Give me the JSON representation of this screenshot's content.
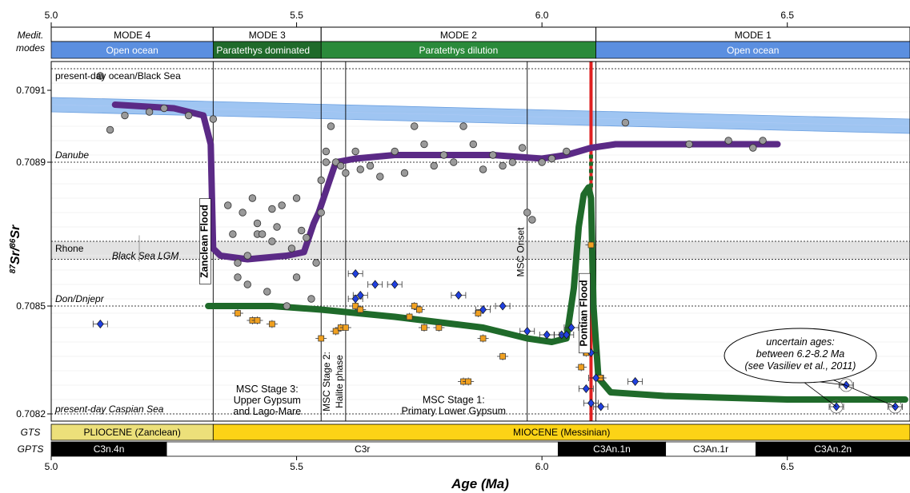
{
  "chart_data": {
    "type": "scatter",
    "xlabel": "Age (Ma)",
    "ylabel": "87Sr/86Sr",
    "ylabel_parts": [
      "87",
      "Sr/",
      "86",
      "Sr"
    ],
    "xlim": [
      5.0,
      6.75
    ],
    "ylim": [
      0.70818,
      0.70918
    ],
    "x_ticks": [
      5.0,
      5.5,
      6.0,
      6.5
    ],
    "x_tick_labels": [
      "5.0",
      "5.5",
      "6.0",
      "6.5"
    ],
    "y_ticks": [
      0.7082,
      0.7085,
      0.7089,
      0.7091
    ],
    "y_tick_labels": [
      "0.7082",
      "0.7085",
      "0.7089",
      "0.7091"
    ],
    "row_labels": {
      "modes": [
        "Medit.",
        "modes"
      ],
      "gts": "GTS",
      "gpts": "GPTS"
    },
    "mode_bands": [
      {
        "label": "MODE 4",
        "from": 5.0,
        "to": 5.33
      },
      {
        "label": "MODE 3",
        "from": 5.33,
        "to": 5.55
      },
      {
        "label": "MODE 2",
        "from": 5.55,
        "to": 6.11
      },
      {
        "label": "MODE 1",
        "from": 6.11,
        "to": 6.75
      }
    ],
    "connection_bands": [
      {
        "label": "Open ocean",
        "from": 5.0,
        "to": 5.33,
        "color": "#5b8fe0"
      },
      {
        "label": "Paratethys dominated",
        "from": 5.33,
        "to": 5.55,
        "color": "#1f6a2a"
      },
      {
        "label": "Paratethys dilution",
        "from": 5.55,
        "to": 6.11,
        "color": "#2a8a3a"
      },
      {
        "label": "Open ocean",
        "from": 6.11,
        "to": 6.75,
        "color": "#5b8fe0"
      }
    ],
    "gts_bands": [
      {
        "label": "PLIOCENE (Zanclean)",
        "from": 5.0,
        "to": 5.33,
        "color": "#ece07a"
      },
      {
        "label": "MIOCENE (Messinian)",
        "from": 5.33,
        "to": 6.75,
        "color": "#fcd316"
      }
    ],
    "gpts_bands": [
      {
        "label": "C3n.4n",
        "from": 5.0,
        "to": 5.235,
        "color": "#000000"
      },
      {
        "label": "C3r",
        "from": 5.235,
        "to": 6.033,
        "color": "#ffffff"
      },
      {
        "label": "C3An.1n",
        "from": 6.033,
        "to": 6.252,
        "color": "#000000"
      },
      {
        "label": "C3An.1r",
        "from": 6.252,
        "to": 6.436,
        "color": "#ffffff"
      },
      {
        "label": "C3An.2n",
        "from": 6.436,
        "to": 6.75,
        "color": "#000000"
      }
    ],
    "reference_lines": [
      {
        "label": "present-day ocean/Black Sea",
        "y": 70916,
        "style": "dashed"
      },
      {
        "label": "Danube",
        "y": 70890,
        "style": "dashed"
      },
      {
        "label": "Don/Dnjepr",
        "y": 70850,
        "style": "dashed"
      },
      {
        "label": "present-day Caspian Sea",
        "y": 70820,
        "style": "dashed"
      }
    ],
    "reference_bands": [
      {
        "label": "Rhone",
        "from": 70863,
        "to": 70868,
        "color": "#e2e2e2"
      },
      {
        "label": "Black Sea LGM",
        "from": 70863,
        "to": 70868,
        "color": "#e2e2e2"
      }
    ],
    "seawater_band": {
      "x": [
        5.0,
        6.75
      ],
      "upper": [
        70908,
        70902
      ],
      "lower": [
        70904,
        70898
      ],
      "color": "#7fb2ee"
    },
    "vertical_lines": [
      {
        "x": 5.33,
        "label": "Zanclean Flood"
      },
      {
        "x": 5.55,
        "label": "MSC Stage 2:"
      },
      {
        "x": 5.6,
        "label": "Halite phase"
      },
      {
        "x": 5.97,
        "label": "MSC Onset"
      },
      {
        "x": 6.11,
        "label": ""
      }
    ],
    "pontian_line": {
      "x": 6.1,
      "label": "Pontian Flood",
      "color": "#e02020"
    },
    "stage_labels": [
      {
        "lines": [
          "MSC Stage 3:",
          "Upper Gypsum",
          "and Lago-Mare"
        ],
        "x": 5.44,
        "y": 70826
      },
      {
        "lines": [
          "MSC Stage 1:",
          "Primary Lower Gypsum"
        ],
        "x": 5.82,
        "y": 70823
      }
    ],
    "callout": {
      "lines": [
        "uncertain ages:",
        "between 6.2-8.2 Ma",
        "(see Vasiliev et al., 2011)"
      ],
      "targets": [
        [
          6.6,
          70822
        ],
        [
          6.72,
          70822
        ],
        [
          6.62,
          70828
        ]
      ]
    },
    "series": [
      {
        "name": "",
        "kind": "line",
        "color": "#5b2a86",
        "x": [
          5.13,
          5.25,
          5.31,
          5.325,
          5.33,
          5.345,
          5.4,
          5.48,
          5.515,
          5.535,
          5.545,
          5.58,
          5.62,
          5.7,
          5.8,
          5.9,
          6.0,
          6.05,
          6.1,
          6.15,
          6.3,
          6.48
        ],
        "y": [
          70906,
          70905,
          70903,
          70895,
          70866,
          70864,
          70863,
          70864,
          70865,
          70873,
          70876,
          70890,
          70891,
          70892,
          70892,
          70892,
          70891,
          70892,
          70894,
          70895,
          70895,
          70895
        ]
      },
      {
        "name": "",
        "kind": "line",
        "color": "#1f6a2a",
        "x": [
          5.32,
          5.45,
          5.55,
          5.7,
          5.88,
          5.97,
          6.02,
          6.05,
          6.065,
          6.075,
          6.085,
          6.095,
          6.1,
          6.105,
          6.115,
          6.14,
          6.25,
          6.5,
          6.74
        ],
        "y": [
          70850,
          70850,
          70849,
          70847,
          70844,
          70841,
          70840,
          70841,
          70855,
          70872,
          70881,
          70883,
          70880,
          70850,
          70830,
          70826,
          70825,
          70824,
          70824
        ]
      },
      {
        "name": "",
        "kind": "scatter-circle",
        "color": "#9a9a9a",
        "x": [
          5.1,
          5.12,
          5.15,
          5.2,
          5.23,
          5.28,
          5.33,
          5.36,
          5.37,
          5.38,
          5.38,
          5.39,
          5.4,
          5.4,
          5.41,
          5.42,
          5.42,
          5.43,
          5.44,
          5.45,
          5.45,
          5.46,
          5.47,
          5.48,
          5.49,
          5.5,
          5.5,
          5.51,
          5.52,
          5.53,
          5.54,
          5.55,
          5.55,
          5.56,
          5.56,
          5.57,
          5.58,
          5.59,
          5.6,
          5.62,
          5.63,
          5.65,
          5.67,
          5.7,
          5.72,
          5.74,
          5.76,
          5.78,
          5.8,
          5.82,
          5.84,
          5.86,
          5.88,
          5.9,
          5.92,
          5.94,
          5.96,
          5.97,
          5.98,
          6.0,
          6.02,
          6.05,
          6.17,
          6.3,
          6.38,
          6.43,
          6.45
        ],
        "y": [
          70914,
          70899,
          70903,
          70904,
          70905,
          70903,
          70902,
          70878,
          70870,
          70862,
          70858,
          70876,
          70864,
          70856,
          70880,
          70873,
          70870,
          70870,
          70854,
          70877,
          70868,
          70872,
          70878,
          70850,
          70866,
          70858,
          70880,
          70871,
          70869,
          70852,
          70862,
          70876,
          70885,
          70893,
          70890,
          70900,
          70890,
          70889,
          70887,
          70893,
          70888,
          70889,
          70886,
          70893,
          70887,
          70900,
          70895,
          70889,
          70892,
          70890,
          70900,
          70895,
          70888,
          70892,
          70889,
          70890,
          70894,
          70876,
          70874,
          70890,
          70891,
          70893,
          70901,
          70895,
          70896,
          70894,
          70896
        ]
      },
      {
        "name": "",
        "kind": "scatter-square",
        "color": "#f0a020",
        "x": [
          5.38,
          5.41,
          5.42,
          5.45,
          5.55,
          5.58,
          5.59,
          5.6,
          5.62,
          5.63,
          5.73,
          5.74,
          5.75,
          5.76,
          5.79,
          5.84,
          5.85,
          5.87,
          5.88,
          5.92,
          6.08,
          6.09,
          6.1,
          6.12
        ],
        "y": [
          70848,
          70846,
          70846,
          70845,
          70841,
          70843,
          70844,
          70844,
          70850,
          70849,
          70847,
          70850,
          70849,
          70844,
          70844,
          70829,
          70829,
          70848,
          70841,
          70836,
          70833,
          70837,
          70867,
          70830
        ]
      },
      {
        "name": "",
        "kind": "scatter-diamond",
        "color": "#2040e0",
        "x": [
          5.1,
          5.62,
          5.62,
          5.63,
          5.66,
          5.7,
          5.83,
          5.88,
          5.92,
          5.97,
          6.01,
          6.04,
          6.05,
          6.06,
          6.09,
          6.1,
          6.1,
          6.11,
          6.12,
          6.19,
          6.62,
          6.6,
          6.72
        ],
        "y": [
          70845,
          70859,
          70852,
          70853,
          70856,
          70856,
          70853,
          70849,
          70850,
          70843,
          70842,
          70842,
          70842,
          70844,
          70827,
          70823,
          70837,
          70830,
          70822,
          70829,
          70828,
          70822,
          70822
        ]
      }
    ]
  }
}
